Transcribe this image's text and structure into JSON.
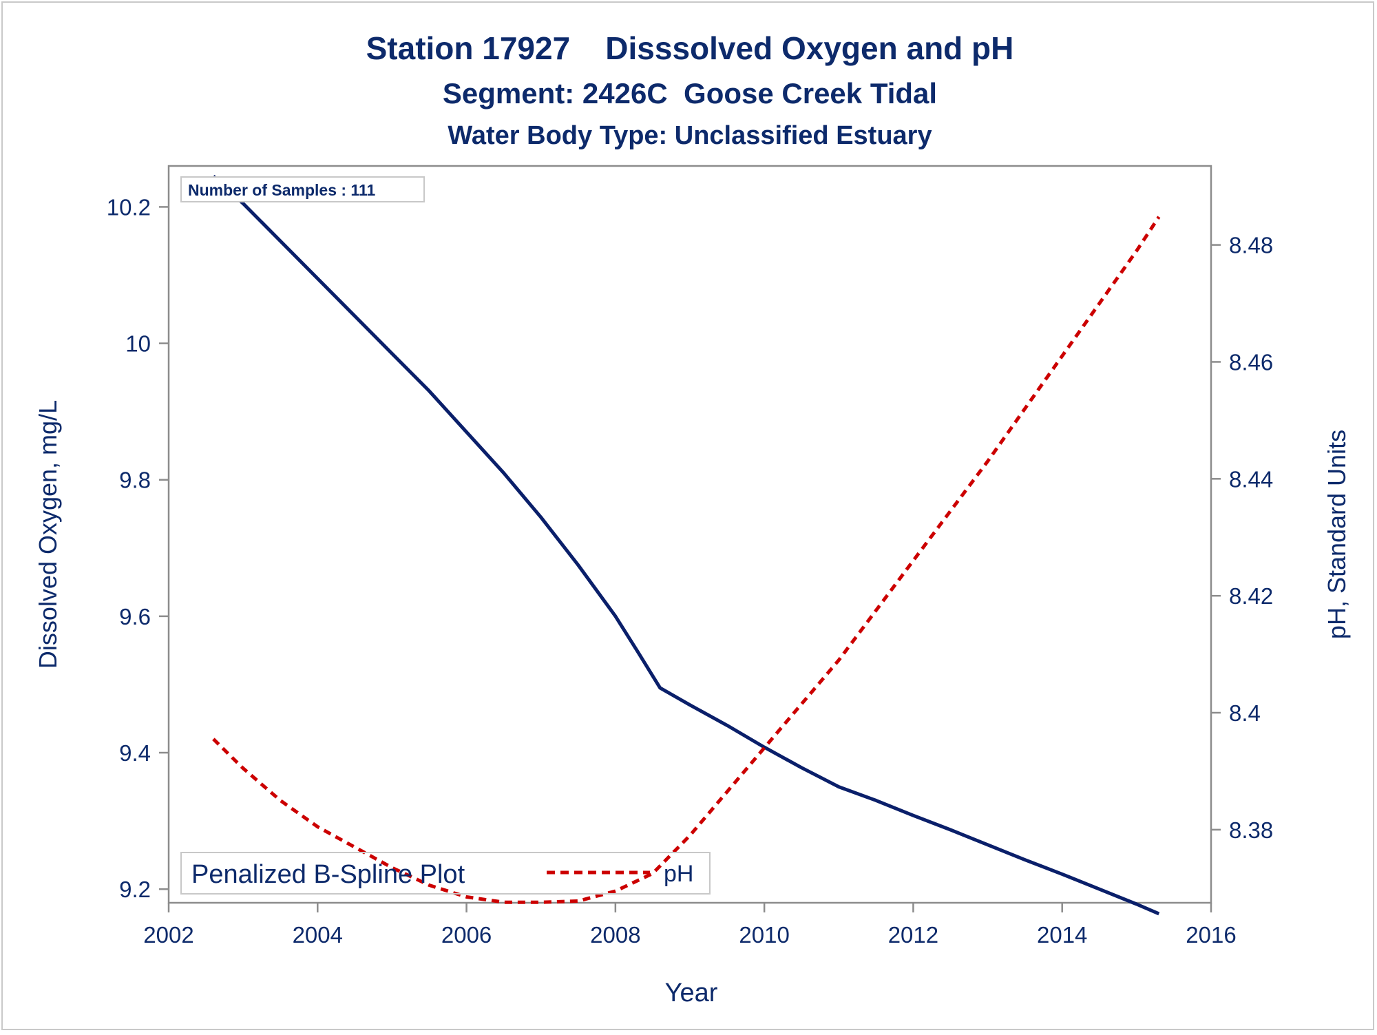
{
  "titles": {
    "line1": "Station 17927    Disssolved Oxygen and pH",
    "line2": "Segment: 2426C  Goose Creek Tidal",
    "line3": "Water Body Type: Unclassified Estuary"
  },
  "inset": {
    "samples": "Number of Samples : 111"
  },
  "legend": {
    "label": "Penalized B-Spline Plot",
    "entry": "pH"
  },
  "colors": {
    "text": "#0d2a6b",
    "do_line": "#0a1f6a",
    "ph_line": "#cc0000",
    "axis": "#8c8c8c"
  },
  "chart_data": {
    "type": "line",
    "xlabel": "Year",
    "ylabel": "Dissolved Oxygen, mg/L",
    "y2label": "pH, Standard Units",
    "xlim": [
      2002,
      2016
    ],
    "ylim": [
      9.18,
      10.26
    ],
    "y2lim": [
      8.3675,
      8.4935
    ],
    "xticks": [
      "2002",
      "2004",
      "2006",
      "2008",
      "2010",
      "2012",
      "2014",
      "2016"
    ],
    "yticks": [
      "9.2",
      "9.4",
      "9.6",
      "9.8",
      "10",
      "10.2"
    ],
    "y2ticks": [
      "8.38",
      "8.4",
      "8.42",
      "8.44",
      "8.46",
      "8.48"
    ],
    "grid": false,
    "legend_position": "bottom-left",
    "series": [
      {
        "axis": "left",
        "style": "solid",
        "x": [
          2002.6,
          2003.0,
          2003.5,
          2004.0,
          2004.5,
          2005.0,
          2005.5,
          2006.0,
          2006.5,
          2007.0,
          2007.5,
          2008.0,
          2008.3,
          2008.6,
          2009.0,
          2009.5,
          2010.0,
          2010.5,
          2011.0,
          2011.5,
          2012.0,
          2012.5,
          2013.0,
          2013.5,
          2014.0,
          2014.5,
          2015.0,
          2015.3
        ],
        "values": [
          10.245,
          10.205,
          10.15,
          10.095,
          10.04,
          9.985,
          9.93,
          9.87,
          9.81,
          9.745,
          9.675,
          9.6,
          9.548,
          9.495,
          9.47,
          9.44,
          9.408,
          9.378,
          9.35,
          9.33,
          9.308,
          9.287,
          9.265,
          9.243,
          9.222,
          9.2,
          9.178,
          9.164
        ]
      },
      {
        "name": "pH",
        "axis": "right",
        "style": "dashed",
        "x": [
          2002.6,
          2003.0,
          2003.5,
          2004.0,
          2004.5,
          2005.0,
          2005.5,
          2006.0,
          2006.5,
          2007.0,
          2007.5,
          2008.0,
          2008.5,
          2009.0,
          2009.5,
          2010.0,
          2010.5,
          2011.0,
          2011.5,
          2012.0,
          2012.5,
          2013.0,
          2013.5,
          2014.0,
          2014.5,
          2015.0,
          2015.3
        ],
        "values": [
          8.3955,
          8.3905,
          8.385,
          8.3805,
          8.377,
          8.3735,
          8.3705,
          8.3685,
          8.3676,
          8.3676,
          8.3678,
          8.3695,
          8.3725,
          8.379,
          8.3865,
          8.394,
          8.4015,
          8.409,
          8.4175,
          8.426,
          8.4345,
          8.443,
          8.452,
          8.461,
          8.47,
          8.479,
          8.4848
        ]
      }
    ]
  }
}
